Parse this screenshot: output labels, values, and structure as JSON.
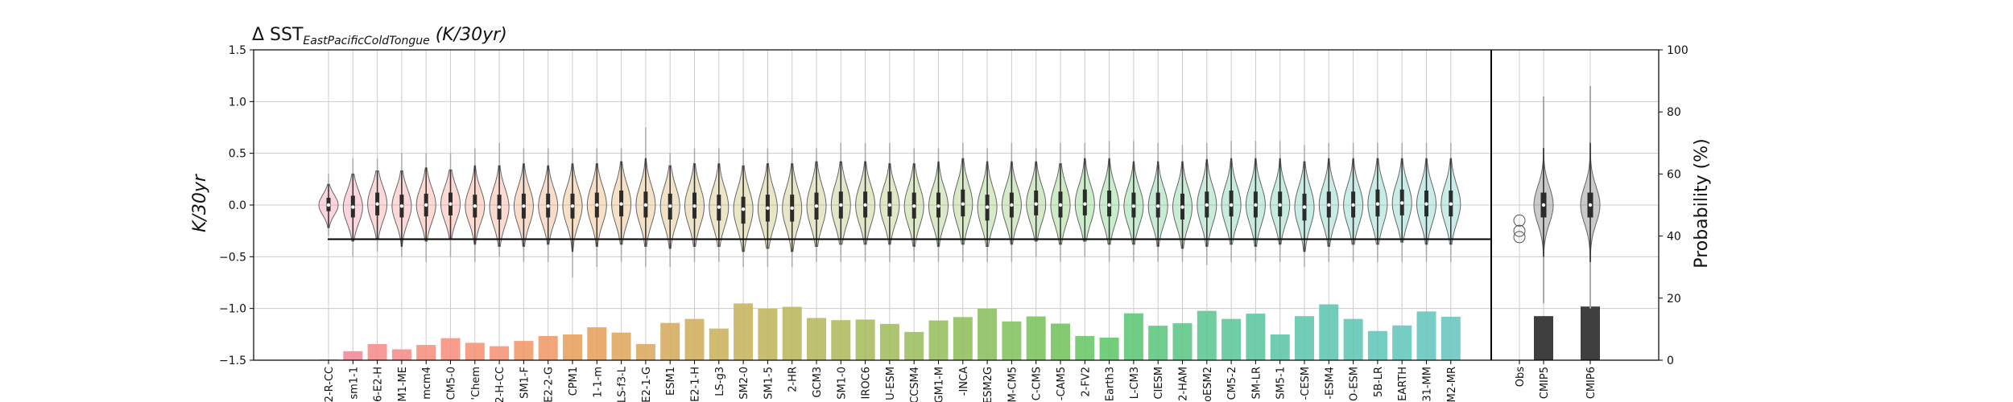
{
  "chart_data": {
    "type": "violin+bar",
    "title": {
      "prefix": "Δ SST",
      "subscript": "EastPacificColdTongue",
      "suffix": " (K/30yr)"
    },
    "ylabel_left": "K/30yr",
    "ylabel_right": "Probability (%)",
    "ylim_left": [
      -1.5,
      1.5
    ],
    "yticks_left": [
      "1.5",
      "1.0",
      "0.5",
      "0.0",
      "−0.5",
      "−1.0",
      "−1.5"
    ],
    "ylim_right": [
      0,
      100
    ],
    "yticks_right": [
      "100",
      "80",
      "60",
      "40",
      "20",
      "0"
    ],
    "grid": true,
    "reference_line": -0.33,
    "models": [
      {
        "label": "2-R-CC",
        "median": 0.0,
        "q1": -0.06,
        "q3": 0.07,
        "wlo": -0.22,
        "whi": 0.2,
        "tmin": -0.3,
        "tmax": 0.3,
        "prob": 0.2
      },
      {
        "label": "sm1-1",
        "median": -0.02,
        "q1": -0.12,
        "q3": 0.09,
        "wlo": -0.35,
        "whi": 0.3,
        "tmin": -0.5,
        "tmax": 0.45,
        "prob": 2.9
      },
      {
        "label": "6-E2-H",
        "median": 0.01,
        "q1": -0.1,
        "q3": 0.12,
        "wlo": -0.33,
        "whi": 0.33,
        "tmin": -0.45,
        "tmax": 0.45,
        "prob": 5.2
      },
      {
        "label": "M1-ME",
        "median": -0.01,
        "q1": -0.12,
        "q3": 0.1,
        "wlo": -0.4,
        "whi": 0.33,
        "tmin": -0.5,
        "tmax": 0.5,
        "prob": 3.5
      },
      {
        "label": "mcm4",
        "median": 0.0,
        "q1": -0.11,
        "q3": 0.11,
        "wlo": -0.35,
        "whi": 0.36,
        "tmin": -0.55,
        "tmax": 0.5,
        "prob": 4.9
      },
      {
        "label": "CM5-0",
        "median": 0.01,
        "q1": -0.1,
        "q3": 0.12,
        "wlo": -0.32,
        "whi": 0.34,
        "tmin": -0.5,
        "tmax": 0.5,
        "prob": 7.1
      },
      {
        "label": "'Chem",
        "median": -0.01,
        "q1": -0.12,
        "q3": 0.1,
        "wlo": -0.38,
        "whi": 0.38,
        "tmin": -0.55,
        "tmax": 0.55,
        "prob": 5.6
      },
      {
        "label": "2-H-CC",
        "median": -0.02,
        "q1": -0.14,
        "q3": 0.1,
        "wlo": -0.4,
        "whi": 0.38,
        "tmin": -0.5,
        "tmax": 0.6,
        "prob": 4.5
      },
      {
        "label": "SM1-F",
        "median": -0.01,
        "q1": -0.13,
        "q3": 0.11,
        "wlo": -0.4,
        "whi": 0.4,
        "tmin": -0.55,
        "tmax": 0.55,
        "prob": 6.2
      },
      {
        "label": "E2-2-G",
        "median": -0.01,
        "q1": -0.12,
        "q3": 0.11,
        "wlo": -0.38,
        "whi": 0.38,
        "tmin": -0.55,
        "tmax": 0.55,
        "prob": 7.8
      },
      {
        "label": "CPM1",
        "median": -0.01,
        "q1": -0.13,
        "q3": 0.11,
        "wlo": -0.45,
        "whi": 0.4,
        "tmin": -0.7,
        "tmax": 0.55,
        "prob": 8.3
      },
      {
        "label": "1-1-m",
        "median": 0.0,
        "q1": -0.12,
        "q3": 0.12,
        "wlo": -0.4,
        "whi": 0.4,
        "tmin": -0.6,
        "tmax": 0.55,
        "prob": 10.6
      },
      {
        "label": "LS-f3-L",
        "median": 0.01,
        "q1": -0.11,
        "q3": 0.14,
        "wlo": -0.38,
        "whi": 0.42,
        "tmin": -0.55,
        "tmax": 0.55,
        "prob": 8.9
      },
      {
        "label": "E2-1-G",
        "median": 0.0,
        "q1": -0.12,
        "q3": 0.13,
        "wlo": -0.4,
        "whi": 0.45,
        "tmin": -0.6,
        "tmax": 0.75,
        "prob": 5.2
      },
      {
        "label": "ESM1",
        "median": -0.01,
        "q1": -0.14,
        "q3": 0.11,
        "wlo": -0.42,
        "whi": 0.38,
        "tmin": -0.6,
        "tmax": 0.5,
        "prob": 12.0
      },
      {
        "label": "E2-1-H",
        "median": -0.01,
        "q1": -0.13,
        "q3": 0.12,
        "wlo": -0.4,
        "whi": 0.4,
        "tmin": -0.55,
        "tmax": 0.55,
        "prob": 13.3
      },
      {
        "label": "LS-g3",
        "median": -0.02,
        "q1": -0.15,
        "q3": 0.1,
        "wlo": -0.4,
        "whi": 0.4,
        "tmin": -0.55,
        "tmax": 0.55,
        "prob": 10.2
      },
      {
        "label": "SM2-0",
        "median": -0.04,
        "q1": -0.18,
        "q3": 0.08,
        "wlo": -0.45,
        "whi": 0.38,
        "tmin": -0.6,
        "tmax": 0.55,
        "prob": 18.3
      },
      {
        "label": "SM1-5",
        "median": -0.03,
        "q1": -0.16,
        "q3": 0.1,
        "wlo": -0.42,
        "whi": 0.4,
        "tmin": -0.6,
        "tmax": 0.55,
        "prob": 16.6
      },
      {
        "label": "2-HR",
        "median": -0.03,
        "q1": -0.16,
        "q3": 0.1,
        "wlo": -0.45,
        "whi": 0.4,
        "tmin": -0.6,
        "tmax": 0.55,
        "prob": 17.2
      },
      {
        "label": "GCM3",
        "median": -0.01,
        "q1": -0.14,
        "q3": 0.12,
        "wlo": -0.4,
        "whi": 0.42,
        "tmin": -0.55,
        "tmax": 0.55,
        "prob": 13.6
      },
      {
        "label": "SM1-0",
        "median": 0.0,
        "q1": -0.13,
        "q3": 0.13,
        "wlo": -0.38,
        "whi": 0.42,
        "tmin": -0.55,
        "tmax": 0.6,
        "prob": 12.9
      },
      {
        "label": "IROC6",
        "median": 0.0,
        "q1": -0.12,
        "q3": 0.13,
        "wlo": -0.38,
        "whi": 0.42,
        "tmin": -0.55,
        "tmax": 0.6,
        "prob": 13.1
      },
      {
        "label": "U-ESM",
        "median": 0.0,
        "q1": -0.11,
        "q3": 0.13,
        "wlo": -0.38,
        "whi": 0.4,
        "tmin": -0.55,
        "tmax": 0.6,
        "prob": 11.7
      },
      {
        "label": "CCSM4",
        "median": -0.01,
        "q1": -0.13,
        "q3": 0.12,
        "wlo": -0.4,
        "whi": 0.4,
        "tmin": -0.55,
        "tmax": 0.55,
        "prob": 9.1
      },
      {
        "label": "GM1-M",
        "median": -0.01,
        "q1": -0.12,
        "q3": 0.12,
        "wlo": -0.4,
        "whi": 0.42,
        "tmin": -0.55,
        "tmax": 0.55,
        "prob": 12.8
      },
      {
        "label": "-INCA",
        "median": 0.01,
        "q1": -0.11,
        "q3": 0.15,
        "wlo": -0.38,
        "whi": 0.45,
        "tmin": -0.55,
        "tmax": 0.6,
        "prob": 13.9
      },
      {
        "label": "ESM2G",
        "median": -0.02,
        "q1": -0.15,
        "q3": 0.1,
        "wlo": -0.4,
        "whi": 0.42,
        "tmin": -0.55,
        "tmax": 0.55,
        "prob": 16.6
      },
      {
        "label": "M-CM5",
        "median": 0.0,
        "q1": -0.12,
        "q3": 0.12,
        "wlo": -0.38,
        "whi": 0.42,
        "tmin": -0.55,
        "tmax": 0.6,
        "prob": 12.5
      },
      {
        "label": "C-CMS",
        "median": 0.01,
        "q1": -0.1,
        "q3": 0.14,
        "wlo": -0.35,
        "whi": 0.42,
        "tmin": -0.5,
        "tmax": 0.55,
        "prob": 14.1
      },
      {
        "label": "-CAM5",
        "median": 0.0,
        "q1": -0.12,
        "q3": 0.13,
        "wlo": -0.38,
        "whi": 0.4,
        "tmin": -0.55,
        "tmax": 0.6,
        "prob": 11.8
      },
      {
        "label": "2-FV2",
        "median": 0.01,
        "q1": -0.1,
        "q3": 0.15,
        "wlo": -0.35,
        "whi": 0.45,
        "tmin": -0.5,
        "tmax": 0.6,
        "prob": 7.8
      },
      {
        "label": "Earth3",
        "median": 0.0,
        "q1": -0.11,
        "q3": 0.14,
        "wlo": -0.38,
        "whi": 0.45,
        "tmin": -0.55,
        "tmax": 0.62,
        "prob": 7.3
      },
      {
        "label": "L-CM3",
        "median": -0.01,
        "q1": -0.12,
        "q3": 0.12,
        "wlo": -0.38,
        "whi": 0.42,
        "tmin": -0.55,
        "tmax": 0.62,
        "prob": 15.1
      },
      {
        "label": "CIESM",
        "median": -0.01,
        "q1": -0.12,
        "q3": 0.12,
        "wlo": -0.4,
        "whi": 0.42,
        "tmin": -0.55,
        "tmax": 0.6,
        "prob": 11.1
      },
      {
        "label": "2-HAM",
        "median": -0.02,
        "q1": -0.14,
        "q3": 0.11,
        "wlo": -0.42,
        "whi": 0.42,
        "tmin": -0.55,
        "tmax": 0.58,
        "prob": 11.9
      },
      {
        "label": "oESM2",
        "median": 0.0,
        "q1": -0.12,
        "q3": 0.13,
        "wlo": -0.4,
        "whi": 0.44,
        "tmin": -0.58,
        "tmax": 0.6,
        "prob": 15.9
      },
      {
        "label": "CM5-2",
        "median": 0.0,
        "q1": -0.11,
        "q3": 0.14,
        "wlo": -0.38,
        "whi": 0.45,
        "tmin": -0.55,
        "tmax": 0.62,
        "prob": 13.3
      },
      {
        "label": "SM-LR",
        "median": 0.0,
        "q1": -0.12,
        "q3": 0.13,
        "wlo": -0.4,
        "whi": 0.45,
        "tmin": -0.55,
        "tmax": 0.62,
        "prob": 15.0
      },
      {
        "label": "SM5-1",
        "median": 0.0,
        "q1": -0.11,
        "q3": 0.13,
        "wlo": -0.38,
        "whi": 0.45,
        "tmin": -0.55,
        "tmax": 0.62,
        "prob": 8.3
      },
      {
        "label": "-CESM",
        "median": -0.02,
        "q1": -0.15,
        "q3": 0.11,
        "wlo": -0.45,
        "whi": 0.42,
        "tmin": -0.6,
        "tmax": 0.58,
        "prob": 14.2
      },
      {
        "label": "-ESM4",
        "median": 0.0,
        "q1": -0.12,
        "q3": 0.13,
        "wlo": -0.4,
        "whi": 0.45,
        "tmin": -0.55,
        "tmax": 0.6,
        "prob": 18.0
      },
      {
        "label": "O-ESM",
        "median": 0.0,
        "q1": -0.12,
        "q3": 0.13,
        "wlo": -0.38,
        "whi": 0.45,
        "tmin": -0.55,
        "tmax": 0.6,
        "prob": 13.3
      },
      {
        "label": "5B-LR",
        "median": 0.01,
        "q1": -0.11,
        "q3": 0.15,
        "wlo": -0.38,
        "whi": 0.45,
        "tmin": -0.55,
        "tmax": 0.6,
        "prob": 9.4
      },
      {
        "label": "EARTH",
        "median": 0.02,
        "q1": -0.1,
        "q3": 0.15,
        "wlo": -0.36,
        "whi": 0.45,
        "tmin": -0.55,
        "tmax": 0.6,
        "prob": 11.2
      },
      {
        "label": "31-MM",
        "median": 0.01,
        "q1": -0.11,
        "q3": 0.14,
        "wlo": -0.38,
        "whi": 0.45,
        "tmin": -0.55,
        "tmax": 0.6,
        "prob": 15.7
      },
      {
        "label": "M2-MR",
        "median": 0.01,
        "q1": -0.11,
        "q3": 0.14,
        "wlo": -0.38,
        "whi": 0.45,
        "tmin": -0.55,
        "tmax": 0.6,
        "prob": 14.0
      }
    ],
    "obs": {
      "label": "Obs",
      "values": [
        -0.15,
        -0.25,
        -0.31
      ]
    },
    "ensembles": [
      {
        "label": "CMIP5",
        "median": 0.0,
        "q1": -0.12,
        "q3": 0.12,
        "wlo": -0.5,
        "whi": 0.55,
        "tmin": -0.95,
        "tmax": 1.05,
        "prob": 14.2
      },
      {
        "label": "CMIP6",
        "median": 0.0,
        "q1": -0.12,
        "q3": 0.12,
        "wlo": -0.55,
        "whi": 0.6,
        "tmin": -1.0,
        "tmax": 1.15,
        "prob": 17.3
      }
    ],
    "colors": {
      "bar_colors": [
        "#f58a9a",
        "#f58a9a",
        "#f58f8e",
        "#f58f8e",
        "#f59282",
        "#f59282",
        "#f59678",
        "#f59678",
        "#f09b6a",
        "#f09b6a",
        "#e8a260",
        "#e8a260",
        "#e0a860",
        "#dcab62",
        "#d6ad62",
        "#d2b062",
        "#ccb462",
        "#c6b662",
        "#c0b862",
        "#bcb862",
        "#b6ba62",
        "#b0bb62",
        "#aabd62",
        "#a4be62",
        "#9ebf62",
        "#98c062",
        "#92c062",
        "#8cc262",
        "#86c462",
        "#80c462",
        "#78c462",
        "#6ec86a",
        "#64c86e",
        "#60c878",
        "#60c882",
        "#60c88a",
        "#60c892",
        "#60c89a",
        "#60c8a2",
        "#60c8a8",
        "#62c8ae",
        "#62c8b2",
        "#64c8b6",
        "#64c8ba",
        "#66c8bc",
        "#68c8be",
        "#6ac8c0"
      ],
      "ensemble_bar": "#3f3f3f",
      "violin_edge": "#666666",
      "box": "#2b2b2b",
      "median_dot": "#ffffff",
      "whisker": "#333333",
      "tail": "#aaaaaa",
      "grid": "#cccccc",
      "reference": "#000000"
    }
  }
}
